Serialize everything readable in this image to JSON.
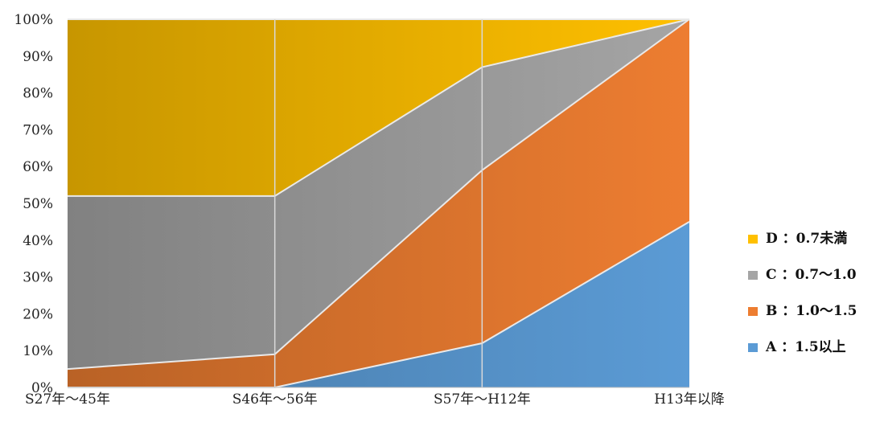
{
  "chart_data": {
    "type": "area",
    "stacked": "percent",
    "categories": [
      "S27年～45年",
      "S46年～56年",
      "S57年～H12年",
      "H13年以降"
    ],
    "ylim": [
      0,
      100
    ],
    "y_ticks": [
      "0%",
      "10%",
      "20%",
      "30%",
      "40%",
      "50%",
      "60%",
      "70%",
      "80%",
      "90%",
      "100%"
    ],
    "grid": "vertical lines at categories",
    "legend_position": "right",
    "series": [
      {
        "name": "A ：1.5以上",
        "values": [
          0,
          0,
          12,
          45
        ],
        "color": "#5B9BD5"
      },
      {
        "name": "B ：1.0～1.5",
        "values": [
          5,
          9,
          47,
          55
        ],
        "color": "#ED7D31"
      },
      {
        "name": "C ：0.7～1.0",
        "values": [
          47,
          43,
          28,
          0
        ],
        "color": "#A5A5A5"
      },
      {
        "name": "D ：0.7未満",
        "values": [
          48,
          48,
          13,
          0
        ],
        "color": "#FFC000"
      }
    ],
    "title": "",
    "xlabel": "",
    "ylabel": ""
  }
}
